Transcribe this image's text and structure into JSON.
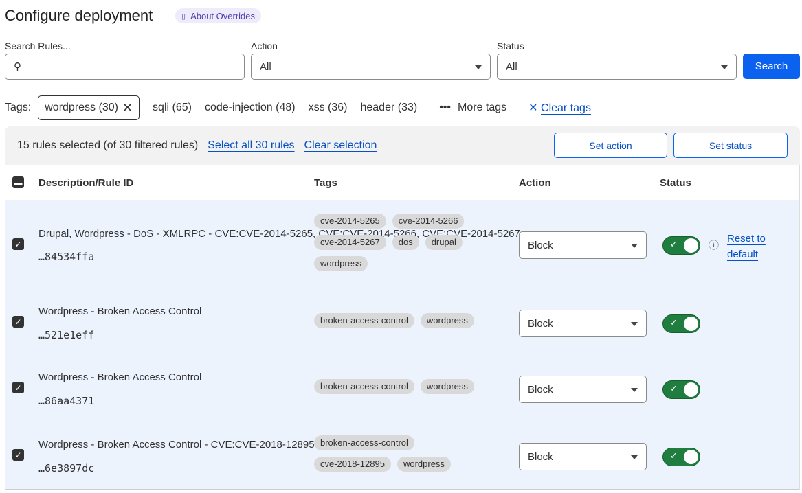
{
  "header": {
    "title": "Configure deployment",
    "about_label": "About Overrides"
  },
  "filters": {
    "search_label": "Search Rules...",
    "search_value": "",
    "action_label": "Action",
    "action_value": "All",
    "status_label": "Status",
    "status_value": "All",
    "search_button": "Search"
  },
  "tags_bar": {
    "label": "Tags:",
    "selected": "wordpress (30)",
    "tags": [
      "sqli (65)",
      "code-injection (48)",
      "xss (36)",
      "header (33)"
    ],
    "more": "More tags",
    "clear": "Clear tags"
  },
  "selection": {
    "summary": "15 rules selected (of 30 filtered rules)",
    "select_all": "Select all 30 rules",
    "clear": "Clear selection",
    "set_action": "Set action",
    "set_status": "Set status"
  },
  "table": {
    "columns": [
      "Description/Rule ID",
      "Tags",
      "Action",
      "Status"
    ],
    "rows": [
      {
        "description": "Drupal, Wordpress - DoS - XMLRPC - CVE:CVE-2014-5265, CVE:CVE-2014-5266, CVE:CVE-2014-5267",
        "id": "…84534ffa",
        "tags": [
          "cve-2014-5265",
          "cve-2014-5266",
          "cve-2014-5267",
          "dos",
          "drupal",
          "wordpress"
        ],
        "action": "Block",
        "enabled": true,
        "reset": "Reset to default"
      },
      {
        "description": "Wordpress - Broken Access Control",
        "id": "…521e1eff",
        "tags": [
          "broken-access-control",
          "wordpress"
        ],
        "action": "Block",
        "enabled": true
      },
      {
        "description": "Wordpress - Broken Access Control",
        "id": "…86aa4371",
        "tags": [
          "broken-access-control",
          "wordpress"
        ],
        "action": "Block",
        "enabled": true
      },
      {
        "description": "Wordpress - Broken Access Control - CVE:CVE-2018-12895",
        "id": "…6e3897dc",
        "tags": [
          "broken-access-control",
          "cve-2018-12895",
          "wordpress"
        ],
        "action": "Block",
        "enabled": true
      }
    ]
  },
  "colors": {
    "primary": "#0b62ef",
    "toggle_on": "#1f7e3f",
    "row_selected": "#edf3fd"
  }
}
